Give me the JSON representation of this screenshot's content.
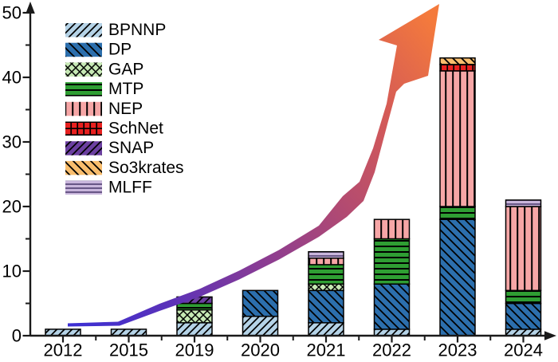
{
  "chart_data": {
    "type": "bar",
    "stacked": true,
    "title": "",
    "xlabel": "",
    "ylabel": "",
    "categories": [
      "2012",
      "2015",
      "2019",
      "2020",
      "2021",
      "2022",
      "2023",
      "2024"
    ],
    "series": [
      {
        "name": "BPNNP",
        "color": "#b5d3e7",
        "pattern": "diag-forward",
        "values": [
          1,
          1,
          2,
          3,
          2,
          1,
          0,
          1
        ]
      },
      {
        "name": "DP",
        "color": "#2c6fad",
        "pattern": "diag-back",
        "values": [
          0,
          0,
          0,
          4,
          5,
          7,
          18,
          4
        ]
      },
      {
        "name": "GAP",
        "color": "#c6e8b4",
        "pattern": "cross-diag",
        "values": [
          0,
          0,
          2,
          0,
          1,
          0,
          0,
          0
        ]
      },
      {
        "name": "MTP",
        "color": "#2f9e33",
        "pattern": "horizontal",
        "values": [
          0,
          0,
          1,
          0,
          3,
          7,
          2,
          2
        ]
      },
      {
        "name": "NEP",
        "color": "#f6a6a6",
        "pattern": "vertical",
        "values": [
          0,
          0,
          0,
          0,
          1,
          3,
          21,
          13
        ]
      },
      {
        "name": "SchNet",
        "color": "#e8201f",
        "pattern": "grid",
        "values": [
          0,
          0,
          0,
          0,
          0,
          0,
          1,
          0
        ]
      },
      {
        "name": "SNAP",
        "color": "#6b3fa0",
        "pattern": "diag-forward",
        "values": [
          0,
          0,
          1,
          0,
          0,
          0,
          0,
          0
        ]
      },
      {
        "name": "So3krates",
        "color": "#f8bd6d",
        "pattern": "diag-back",
        "values": [
          0,
          0,
          0,
          0,
          0,
          0,
          1,
          0
        ]
      },
      {
        "name": "MLFF",
        "color": "#c9b6dc",
        "pattern": "horizontal-dark",
        "values": [
          0,
          0,
          0,
          0,
          1,
          0,
          0,
          1
        ]
      }
    ],
    "totals": [
      1,
      1,
      6,
      7,
      13,
      18,
      43,
      21
    ],
    "ylim": [
      0,
      50
    ],
    "yticks": [
      0,
      10,
      20,
      30,
      40,
      50
    ],
    "yticks_minor": [
      5,
      15,
      25,
      35,
      45
    ],
    "grid": false,
    "legend_position": "top-left",
    "bar_outline_color": "#000000",
    "axis_color": "#1a1a1a",
    "trend_arrow": {
      "description": "thick upward-curving growth arrow from bottom-left to top-right",
      "gradient": [
        "#3b2fd4",
        "#5c32b8",
        "#8a3c93",
        "#b14a72",
        "#d45a57",
        "#f47a3c"
      ]
    }
  }
}
